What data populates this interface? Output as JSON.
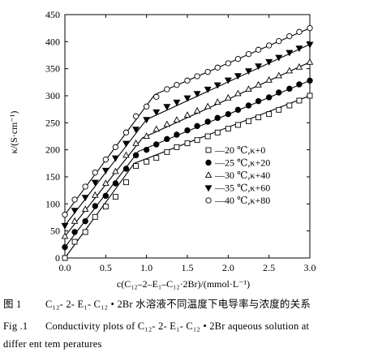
{
  "chart_data": {
    "type": "scatter",
    "ylabel": "κ/(S·cm⁻¹)",
    "xlabel": "c(C₁₂–2–E₁–C₁₂·2Br)/(mmol·L⁻¹)",
    "xlim": [
      0,
      3.0
    ],
    "ylim": [
      0,
      450
    ],
    "xticks": [
      "0.0",
      "0.5",
      "1.0",
      "1.5",
      "2.0",
      "2.5",
      "3.0"
    ],
    "yticks": [
      "0",
      "50",
      "100",
      "150",
      "200",
      "250",
      "300",
      "350",
      "400",
      "450"
    ],
    "grid": false,
    "legend_position": "right-middle",
    "series": [
      {
        "name": "20 ℃,κ+0",
        "marker": "square-open",
        "x": [
          0,
          0.12,
          0.25,
          0.37,
          0.5,
          0.62,
          0.75,
          0.87,
          1.0,
          1.12,
          1.25,
          1.37,
          1.5,
          1.62,
          1.75,
          1.87,
          2.0,
          2.12,
          2.25,
          2.37,
          2.5,
          2.62,
          2.75,
          2.87,
          3.0
        ],
        "y": [
          0,
          30,
          48,
          76,
          95,
          113,
          140,
          170,
          178,
          185,
          196,
          205,
          212,
          218,
          225,
          232,
          239,
          246,
          253,
          260,
          266,
          274,
          282,
          291,
          300
        ]
      },
      {
        "name": "25 ℃,κ+20",
        "marker": "circle-filled",
        "x": [
          0,
          0.12,
          0.25,
          0.37,
          0.5,
          0.62,
          0.75,
          0.87,
          1.0,
          1.12,
          1.25,
          1.37,
          1.5,
          1.62,
          1.75,
          1.87,
          2.0,
          2.12,
          2.25,
          2.37,
          2.5,
          2.62,
          2.75,
          2.87,
          3.0
        ],
        "y": [
          20,
          48,
          68,
          96,
          115,
          138,
          165,
          190,
          200,
          210,
          220,
          228,
          236,
          244,
          252,
          259,
          266,
          274,
          282,
          290,
          297,
          306,
          313,
          321,
          328
        ]
      },
      {
        "name": "30 ℃,κ+40",
        "marker": "triangle-up-open",
        "x": [
          0,
          0.12,
          0.25,
          0.37,
          0.5,
          0.62,
          0.75,
          0.87,
          1.0,
          1.12,
          1.25,
          1.37,
          1.5,
          1.62,
          1.75,
          1.87,
          2.0,
          2.12,
          2.25,
          2.37,
          2.5,
          2.62,
          2.75,
          2.87,
          3.0
        ],
        "y": [
          40,
          68,
          90,
          116,
          138,
          160,
          190,
          212,
          225,
          238,
          247,
          255,
          264,
          272,
          280,
          288,
          296,
          304,
          312,
          320,
          329,
          337,
          346,
          353,
          362
        ]
      },
      {
        "name": "35 ℃,κ+60",
        "marker": "triangle-down-filled",
        "x": [
          0,
          0.12,
          0.25,
          0.37,
          0.5,
          0.62,
          0.75,
          0.87,
          1.0,
          1.12,
          1.25,
          1.37,
          1.5,
          1.62,
          1.75,
          1.87,
          2.0,
          2.12,
          2.25,
          2.37,
          2.5,
          2.62,
          2.75,
          2.87,
          3.0
        ],
        "y": [
          60,
          88,
          112,
          140,
          162,
          185,
          212,
          238,
          256,
          270,
          280,
          288,
          296,
          304,
          312,
          320,
          329,
          337,
          346,
          355,
          363,
          371,
          380,
          388,
          395
        ]
      },
      {
        "name": "40 ℃,κ+80",
        "marker": "circle-open",
        "x": [
          0,
          0.12,
          0.25,
          0.37,
          0.5,
          0.62,
          0.75,
          0.87,
          1.0,
          1.12,
          1.25,
          1.37,
          1.5,
          1.62,
          1.75,
          1.87,
          2.0,
          2.12,
          2.25,
          2.37,
          2.5,
          2.62,
          2.75,
          2.87,
          3.0
        ],
        "y": [
          80,
          108,
          132,
          158,
          182,
          205,
          232,
          262,
          280,
          298,
          312,
          320,
          328,
          336,
          344,
          352,
          360,
          368,
          377,
          385,
          393,
          401,
          410,
          418,
          425
        ]
      }
    ],
    "fit_lines": [
      {
        "series": "20 ℃,κ+0",
        "x": [
          0,
          0.85,
          3.0
        ],
        "y": [
          0,
          175,
          300
        ]
      },
      {
        "series": "25 ℃,κ+20",
        "x": [
          0,
          0.9,
          3.0
        ],
        "y": [
          20,
          197,
          328
        ]
      },
      {
        "series": "30 ℃,κ+40",
        "x": [
          0,
          0.95,
          3.0
        ],
        "y": [
          40,
          222,
          362
        ]
      },
      {
        "series": "35 ℃,κ+60",
        "x": [
          0,
          1.0,
          3.0
        ],
        "y": [
          60,
          256,
          395
        ]
      },
      {
        "series": "40 ℃,κ+80",
        "x": [
          0,
          1.1,
          3.0
        ],
        "y": [
          80,
          302,
          425
        ]
      }
    ]
  },
  "legend_dash": "—",
  "caption": {
    "fig_cn_label": "图 1",
    "fig_cn_text": "C₁₂- 2- E₁- C₁₂ • 2Br 水溶液不同温度下电导率与浓度的关系",
    "fig_en_label": "Fig .1",
    "fig_en_text": "Conductivity plots of C₁₂- 2- E₁- C₁₂ • 2Br aqueous solution at",
    "fig_en_text2": "differ ent tem peratures"
  }
}
